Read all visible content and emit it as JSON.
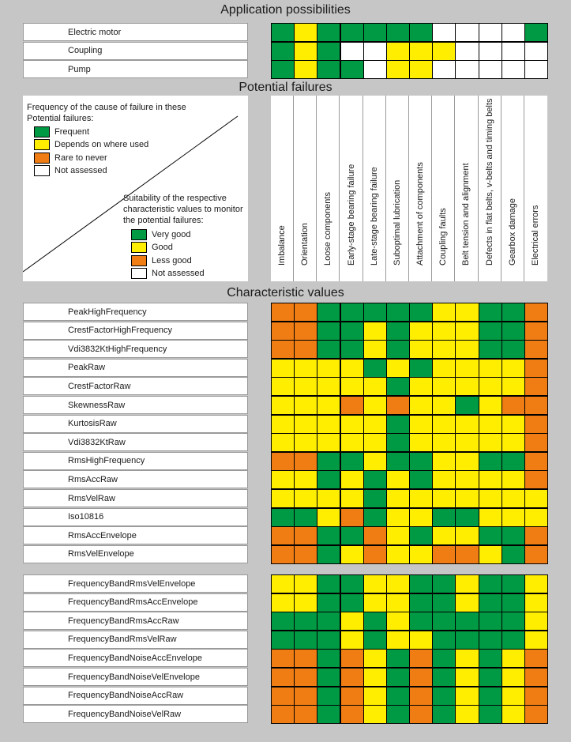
{
  "titles": {
    "application": "Application possibilities",
    "failures": "Potential failures",
    "characteristic": "Characteristic values"
  },
  "colors": {
    "frequent": "#009a44",
    "depends": "#ffee00",
    "rare": "#ef7d14",
    "not_assessed": "#ffffff"
  },
  "legend": {
    "frequency_title": "Frequency of the cause of failure in these Potential failures:",
    "frequency_items": [
      "Frequent",
      "Depends on where used",
      "Rare to never",
      "Not assessed"
    ],
    "suitability_title": "Suitability of the respective characteristic values to monitor the potential failures:",
    "suitability_items": [
      "Very good",
      "Good",
      "Less good",
      "Not assessed"
    ]
  },
  "columns": [
    "Imbalance",
    "Orientation",
    "Loose components",
    "Early-stage bearing failure",
    "Late-stage bearing failure",
    "Suboptimal lubrication",
    "Attachment of components",
    "Coupling faults",
    "Belt tension and alignment",
    "Defects in flat belts, v-belts and timing belts",
    "Gearbox damage",
    "Electrical errors"
  ],
  "applications": [
    {
      "label": "Electric motor",
      "cells": [
        "G",
        "Y",
        "G",
        "G",
        "G",
        "G",
        "G",
        "W",
        "W",
        "W",
        "W",
        "G"
      ]
    },
    {
      "label": "Coupling",
      "cells": [
        "G",
        "Y",
        "G",
        "W",
        "W",
        "Y",
        "Y",
        "Y",
        "W",
        "W",
        "W",
        "W"
      ]
    },
    {
      "label": "Pump",
      "cells": [
        "G",
        "Y",
        "G",
        "G",
        "W",
        "Y",
        "Y",
        "W",
        "W",
        "W",
        "W",
        "W"
      ]
    }
  ],
  "characteristic_group1": [
    {
      "label": "PeakHighFrequency",
      "cells": [
        "O",
        "O",
        "G",
        "G",
        "G",
        "G",
        "G",
        "Y",
        "Y",
        "G",
        "G",
        "O"
      ]
    },
    {
      "label": "CrestFactorHighFrequency",
      "cells": [
        "O",
        "O",
        "G",
        "G",
        "Y",
        "G",
        "Y",
        "Y",
        "Y",
        "G",
        "G",
        "O"
      ]
    },
    {
      "label": "Vdi3832KtHighFrequency",
      "cells": [
        "O",
        "O",
        "G",
        "G",
        "Y",
        "G",
        "Y",
        "Y",
        "Y",
        "G",
        "G",
        "O"
      ]
    },
    {
      "label": "PeakRaw",
      "cells": [
        "Y",
        "Y",
        "Y",
        "Y",
        "G",
        "Y",
        "G",
        "Y",
        "Y",
        "Y",
        "Y",
        "O"
      ]
    },
    {
      "label": "CrestFactorRaw",
      "cells": [
        "Y",
        "Y",
        "Y",
        "Y",
        "Y",
        "G",
        "Y",
        "Y",
        "Y",
        "Y",
        "Y",
        "O"
      ]
    },
    {
      "label": "SkewnessRaw",
      "cells": [
        "Y",
        "Y",
        "Y",
        "O",
        "Y",
        "O",
        "Y",
        "Y",
        "G",
        "Y",
        "O",
        "O"
      ]
    },
    {
      "label": "KurtosisRaw",
      "cells": [
        "Y",
        "Y",
        "Y",
        "Y",
        "Y",
        "G",
        "Y",
        "Y",
        "Y",
        "Y",
        "Y",
        "O"
      ]
    },
    {
      "label": "Vdi3832KtRaw",
      "cells": [
        "Y",
        "Y",
        "Y",
        "Y",
        "Y",
        "G",
        "Y",
        "Y",
        "Y",
        "Y",
        "Y",
        "O"
      ]
    },
    {
      "label": "RmsHighFrequency",
      "cells": [
        "O",
        "O",
        "G",
        "G",
        "Y",
        "G",
        "G",
        "Y",
        "Y",
        "G",
        "G",
        "O"
      ]
    },
    {
      "label": "RmsAccRaw",
      "cells": [
        "Y",
        "Y",
        "G",
        "Y",
        "G",
        "Y",
        "G",
        "Y",
        "Y",
        "Y",
        "Y",
        "O"
      ]
    },
    {
      "label": "RmsVelRaw",
      "cells": [
        "Y",
        "Y",
        "Y",
        "Y",
        "G",
        "Y",
        "Y",
        "Y",
        "Y",
        "Y",
        "Y",
        "Y"
      ]
    },
    {
      "label": "Iso10816",
      "cells": [
        "G",
        "G",
        "Y",
        "O",
        "G",
        "Y",
        "Y",
        "G",
        "G",
        "Y",
        "Y",
        "Y"
      ]
    },
    {
      "label": "RmsAccEnvelope",
      "cells": [
        "O",
        "O",
        "G",
        "G",
        "O",
        "Y",
        "G",
        "Y",
        "Y",
        "G",
        "G",
        "O"
      ]
    },
    {
      "label": "RmsVelEnvelope",
      "cells": [
        "O",
        "O",
        "G",
        "Y",
        "O",
        "Y",
        "Y",
        "O",
        "O",
        "Y",
        "G",
        "O"
      ]
    }
  ],
  "characteristic_group2": [
    {
      "label": "FrequencyBandRmsVelEnvelope",
      "cells": [
        "Y",
        "Y",
        "G",
        "G",
        "Y",
        "Y",
        "G",
        "G",
        "Y",
        "G",
        "G",
        "Y"
      ]
    },
    {
      "label": "FrequencyBandRmsAccEnvelope",
      "cells": [
        "Y",
        "Y",
        "G",
        "G",
        "Y",
        "Y",
        "G",
        "G",
        "Y",
        "G",
        "G",
        "Y"
      ]
    },
    {
      "label": "FrequencyBandRmsAccRaw",
      "cells": [
        "G",
        "G",
        "G",
        "Y",
        "G",
        "Y",
        "G",
        "G",
        "G",
        "G",
        "G",
        "Y"
      ]
    },
    {
      "label": "FrequencyBandRmsVelRaw",
      "cells": [
        "G",
        "G",
        "G",
        "Y",
        "G",
        "Y",
        "Y",
        "G",
        "G",
        "G",
        "G",
        "Y"
      ]
    },
    {
      "label": "FrequencyBandNoiseAccEnvelope",
      "cells": [
        "O",
        "O",
        "G",
        "O",
        "Y",
        "G",
        "O",
        "G",
        "Y",
        "G",
        "Y",
        "O"
      ]
    },
    {
      "label": "FrequencyBandNoiseVelEnvelope",
      "cells": [
        "O",
        "O",
        "G",
        "O",
        "Y",
        "G",
        "O",
        "G",
        "Y",
        "G",
        "Y",
        "O"
      ]
    },
    {
      "label": "FrequencyBandNoiseAccRaw",
      "cells": [
        "O",
        "O",
        "G",
        "O",
        "Y",
        "G",
        "O",
        "G",
        "Y",
        "G",
        "Y",
        "O"
      ]
    },
    {
      "label": "FrequencyBandNoiseVelRaw",
      "cells": [
        "O",
        "O",
        "G",
        "O",
        "Y",
        "G",
        "O",
        "G",
        "Y",
        "G",
        "Y",
        "O"
      ]
    }
  ]
}
